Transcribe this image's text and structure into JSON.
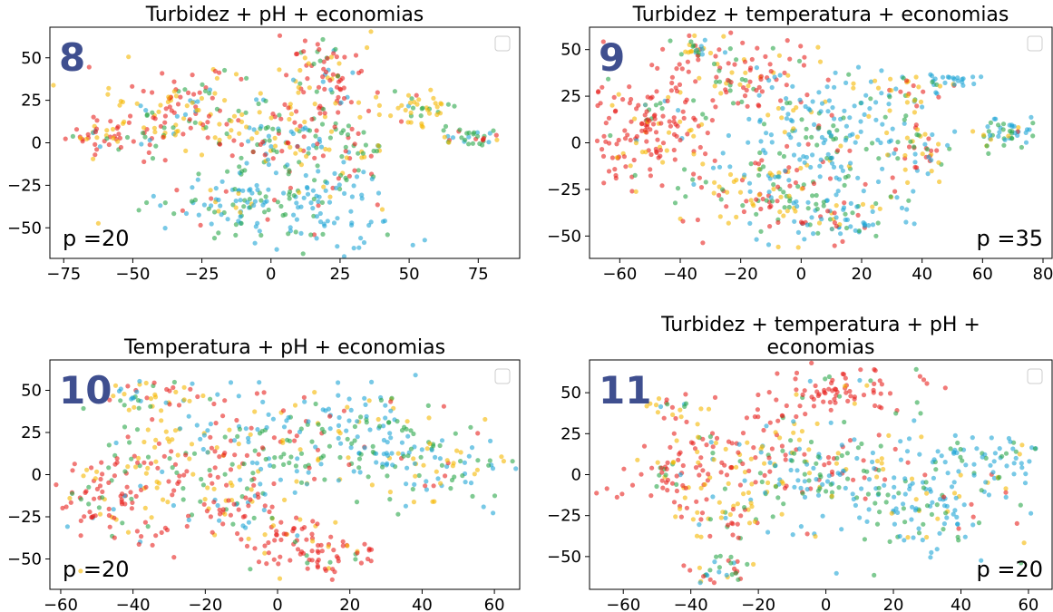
{
  "colors": {
    "red": "#e8221e",
    "yellow": "#f5b800",
    "green": "#2aa64a",
    "blue": "#1ea5d6",
    "badge": "#3f4f8f"
  },
  "chart_data": [
    {
      "type": "scatter",
      "title_lines": [
        "Turbidez + pH + economias"
      ],
      "badge": "8",
      "perplexity_label": "p =20",
      "perplexity_position": "bottom-left",
      "legend": "top-right",
      "xlim": [
        -80,
        90
      ],
      "ylim": [
        -68,
        68
      ],
      "xticks": [
        -75,
        -50,
        -25,
        0,
        25,
        50,
        75
      ],
      "xtick_labels": [
        "−75",
        "−50",
        "−25",
        "0",
        "25",
        "50",
        "75"
      ],
      "yticks": [
        -50,
        -25,
        0,
        25,
        50
      ],
      "ytick_labels": [
        "−50",
        "−25",
        "0",
        "25",
        "50"
      ],
      "clusters": [
        {
          "x": -62,
          "y": 5,
          "sx": 6,
          "sy": 5,
          "n": 40,
          "mix": [
            0.55,
            0.3,
            0.1,
            0.05
          ]
        },
        {
          "x": -30,
          "y": 20,
          "sx": 14,
          "sy": 12,
          "n": 120,
          "mix": [
            0.35,
            0.35,
            0.2,
            0.1
          ]
        },
        {
          "x": -15,
          "y": -35,
          "sx": 14,
          "sy": 8,
          "n": 90,
          "mix": [
            0.05,
            0.1,
            0.35,
            0.5
          ]
        },
        {
          "x": 0,
          "y": 0,
          "sx": 12,
          "sy": 12,
          "n": 110,
          "mix": [
            0.25,
            0.2,
            0.3,
            0.25
          ]
        },
        {
          "x": 18,
          "y": -40,
          "sx": 14,
          "sy": 12,
          "n": 90,
          "mix": [
            0.05,
            0.05,
            0.2,
            0.7
          ]
        },
        {
          "x": 20,
          "y": 35,
          "sx": 8,
          "sy": 15,
          "n": 90,
          "mix": [
            0.6,
            0.2,
            0.15,
            0.05
          ]
        },
        {
          "x": 30,
          "y": -5,
          "sx": 7,
          "sy": 12,
          "n": 50,
          "mix": [
            0.3,
            0.2,
            0.4,
            0.1
          ]
        },
        {
          "x": 52,
          "y": 20,
          "sx": 7,
          "sy": 6,
          "n": 45,
          "mix": [
            0.1,
            0.55,
            0.3,
            0.05
          ]
        },
        {
          "x": 72,
          "y": 3,
          "sx": 6,
          "sy": 3,
          "n": 35,
          "mix": [
            0.2,
            0.1,
            0.5,
            0.2
          ]
        },
        {
          "x": -45,
          "y": 5,
          "sx": 6,
          "sy": 8,
          "n": 30,
          "mix": [
            0.4,
            0.3,
            0.2,
            0.1
          ]
        }
      ]
    },
    {
      "type": "scatter",
      "title_lines": [
        "Turbidez + temperatura + economias"
      ],
      "badge": "9",
      "perplexity_label": "p =35",
      "perplexity_position": "bottom-right",
      "legend": "top-right",
      "xlim": [
        -70,
        83
      ],
      "ylim": [
        -62,
        62
      ],
      "xticks": [
        -60,
        -40,
        -20,
        0,
        20,
        40,
        60,
        80
      ],
      "xtick_labels": [
        "−60",
        "−40",
        "−20",
        "0",
        "20",
        "40",
        "60",
        "80"
      ],
      "yticks": [
        -50,
        -25,
        0,
        25,
        50
      ],
      "ytick_labels": [
        "−50",
        "−25",
        "0",
        "25",
        "50"
      ],
      "clusters": [
        {
          "x": -50,
          "y": 5,
          "sx": 10,
          "sy": 14,
          "n": 160,
          "mix": [
            0.75,
            0.15,
            0.07,
            0.03
          ]
        },
        {
          "x": -20,
          "y": 35,
          "sx": 14,
          "sy": 10,
          "n": 110,
          "mix": [
            0.55,
            0.2,
            0.2,
            0.05
          ]
        },
        {
          "x": -10,
          "y": -25,
          "sx": 12,
          "sy": 12,
          "n": 130,
          "mix": [
            0.25,
            0.25,
            0.3,
            0.2
          ]
        },
        {
          "x": 10,
          "y": 5,
          "sx": 13,
          "sy": 16,
          "n": 170,
          "mix": [
            0.08,
            0.07,
            0.2,
            0.65
          ]
        },
        {
          "x": 15,
          "y": -40,
          "sx": 10,
          "sy": 8,
          "n": 80,
          "mix": [
            0.1,
            0.15,
            0.25,
            0.5
          ]
        },
        {
          "x": 40,
          "y": -2,
          "sx": 5,
          "sy": 10,
          "n": 50,
          "mix": [
            0.3,
            0.2,
            0.2,
            0.3
          ]
        },
        {
          "x": 35,
          "y": 28,
          "sx": 4,
          "sy": 5,
          "n": 25,
          "mix": [
            0.3,
            0.5,
            0.1,
            0.1
          ]
        },
        {
          "x": 50,
          "y": 33,
          "sx": 4,
          "sy": 2,
          "n": 25,
          "mix": [
            0.05,
            0.05,
            0.1,
            0.8
          ]
        },
        {
          "x": 68,
          "y": 5,
          "sx": 6,
          "sy": 5,
          "n": 50,
          "mix": [
            0.1,
            0.2,
            0.3,
            0.4
          ]
        },
        {
          "x": -35,
          "y": 50,
          "sx": 4,
          "sy": 3,
          "n": 25,
          "mix": [
            0.3,
            0.3,
            0.2,
            0.2
          ]
        }
      ]
    },
    {
      "type": "scatter",
      "title_lines": [
        "Temperatura + pH + economias"
      ],
      "badge": "10",
      "perplexity_label": "p =20",
      "perplexity_position": "bottom-left",
      "legend": "top-right",
      "xlim": [
        -63,
        67
      ],
      "ylim": [
        -68,
        68
      ],
      "xticks": [
        -60,
        -40,
        -20,
        0,
        20,
        40,
        60
      ],
      "xtick_labels": [
        "−60",
        "−40",
        "−20",
        "0",
        "20",
        "40",
        "60"
      ],
      "yticks": [
        -50,
        -25,
        0,
        25,
        50
      ],
      "ytick_labels": [
        "−50",
        "−25",
        "0",
        "25",
        "50"
      ],
      "clusters": [
        {
          "x": -45,
          "y": -15,
          "sx": 9,
          "sy": 14,
          "n": 110,
          "mix": [
            0.55,
            0.25,
            0.15,
            0.05
          ]
        },
        {
          "x": -35,
          "y": 45,
          "sx": 7,
          "sy": 5,
          "n": 55,
          "mix": [
            0.3,
            0.3,
            0.3,
            0.1
          ]
        },
        {
          "x": -25,
          "y": 10,
          "sx": 10,
          "sy": 12,
          "n": 90,
          "mix": [
            0.35,
            0.4,
            0.15,
            0.1
          ]
        },
        {
          "x": 0,
          "y": 15,
          "sx": 10,
          "sy": 18,
          "n": 120,
          "mix": [
            0.15,
            0.15,
            0.35,
            0.35
          ]
        },
        {
          "x": 10,
          "y": -45,
          "sx": 9,
          "sy": 9,
          "n": 90,
          "mix": [
            0.8,
            0.1,
            0.08,
            0.02
          ]
        },
        {
          "x": 25,
          "y": 25,
          "sx": 9,
          "sy": 14,
          "n": 100,
          "mix": [
            0.05,
            0.1,
            0.3,
            0.55
          ]
        },
        {
          "x": 45,
          "y": 5,
          "sx": 10,
          "sy": 12,
          "n": 90,
          "mix": [
            0.1,
            0.2,
            0.35,
            0.35
          ]
        },
        {
          "x": -10,
          "y": -20,
          "sx": 8,
          "sy": 10,
          "n": 60,
          "mix": [
            0.5,
            0.25,
            0.15,
            0.1
          ]
        }
      ]
    },
    {
      "type": "scatter",
      "title_lines": [
        "Turbidez + temperatura + pH +",
        "economias"
      ],
      "badge": "11",
      "perplexity_label": "p =20",
      "perplexity_position": "bottom-right",
      "legend": "top-right",
      "xlim": [
        -70,
        67
      ],
      "ylim": [
        -70,
        70
      ],
      "xticks": [
        -60,
        -40,
        -20,
        0,
        20,
        40,
        60
      ],
      "xtick_labels": [
        "−60",
        "−40",
        "−20",
        "0",
        "20",
        "40",
        "60"
      ],
      "yticks": [
        -50,
        -25,
        0,
        25,
        50
      ],
      "ytick_labels": [
        "−50",
        "−25",
        "0",
        "25",
        "50"
      ],
      "clusters": [
        {
          "x": -45,
          "y": 0,
          "sx": 10,
          "sy": 10,
          "n": 60,
          "mix": [
            0.6,
            0.2,
            0.15,
            0.05
          ]
        },
        {
          "x": -45,
          "y": 40,
          "sx": 4,
          "sy": 4,
          "n": 20,
          "mix": [
            0.5,
            0.3,
            0.1,
            0.1
          ]
        },
        {
          "x": -20,
          "y": 15,
          "sx": 12,
          "sy": 15,
          "n": 110,
          "mix": [
            0.5,
            0.25,
            0.15,
            0.1
          ]
        },
        {
          "x": 5,
          "y": 50,
          "sx": 12,
          "sy": 6,
          "n": 80,
          "mix": [
            0.8,
            0.1,
            0.05,
            0.05
          ]
        },
        {
          "x": 0,
          "y": 0,
          "sx": 14,
          "sy": 15,
          "n": 130,
          "mix": [
            0.1,
            0.15,
            0.4,
            0.35
          ]
        },
        {
          "x": 30,
          "y": -20,
          "sx": 12,
          "sy": 15,
          "n": 110,
          "mix": [
            0.05,
            0.1,
            0.25,
            0.6
          ]
        },
        {
          "x": 45,
          "y": 10,
          "sx": 9,
          "sy": 10,
          "n": 70,
          "mix": [
            0.05,
            0.1,
            0.3,
            0.55
          ]
        },
        {
          "x": -30,
          "y": -60,
          "sx": 5,
          "sy": 4,
          "n": 35,
          "mix": [
            0.3,
            0.1,
            0.4,
            0.2
          ]
        },
        {
          "x": -30,
          "y": -25,
          "sx": 8,
          "sy": 6,
          "n": 45,
          "mix": [
            0.4,
            0.4,
            0.1,
            0.1
          ]
        }
      ]
    }
  ]
}
